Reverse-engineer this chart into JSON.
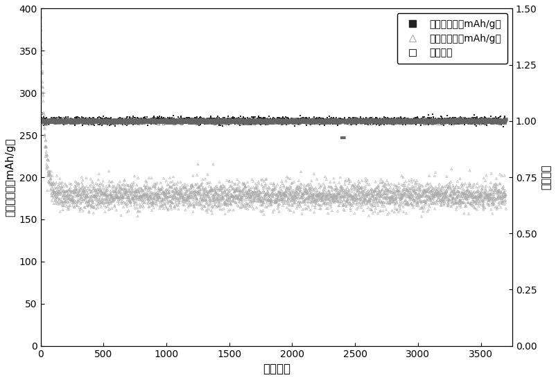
{
  "title": "",
  "xlabel": "循环次数",
  "ylabel_left": "充电比容量（mAh/g）",
  "ylabel_right": "库伦效率",
  "xlim": [
    0,
    3750
  ],
  "ylim_left": [
    0,
    400
  ],
  "ylim_right": [
    0.0,
    1.5
  ],
  "yticks_left": [
    0,
    50,
    100,
    150,
    200,
    250,
    300,
    350,
    400
  ],
  "yticks_right": [
    0.0,
    0.25,
    0.5,
    0.75,
    1.0,
    1.25,
    1.5
  ],
  "xticks": [
    0,
    500,
    1000,
    1500,
    2000,
    2500,
    3000,
    3500
  ],
  "charge_color": "#222222",
  "discharge_color": "#aaaaaa",
  "coulomb_color": "#666666",
  "legend_labels": [
    "充电比容量（mAh/g）",
    "放电比容量（mAh/g）",
    "库伦效率"
  ],
  "bg_color": "#ffffff",
  "n_cycles": 3700,
  "charge_base": 267,
  "charge_noise": 2.0,
  "discharge_base": 178,
  "discharge_noise": 8,
  "discharge_decay_init": 390,
  "discharge_decay_tau": 30,
  "coulomb_base": 1.0,
  "coulomb_noise": 0.004,
  "coulomb_first": 1.035,
  "coulomb_dip_cycle": 2400,
  "coulomb_dip_value": 0.927
}
